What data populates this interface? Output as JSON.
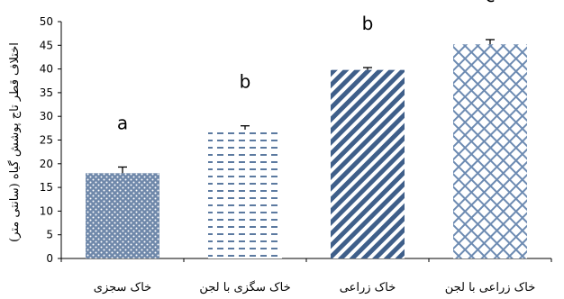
{
  "chart_data": {
    "type": "bar",
    "categories": [
      "خاک سجزی",
      "خاک سگزی با لجن",
      "خاک زراعی",
      "خاک زراعی با لجن"
    ],
    "values": [
      18,
      27.2,
      39.8,
      45.2
    ],
    "errors": [
      1.3,
      0.8,
      0.5,
      1.0
    ],
    "significance_letters": [
      "a",
      "b",
      "b",
      "c"
    ],
    "ylabel": "اختلاف قطر تاج پوشش گیاه (سانتی متر)",
    "ylim": [
      0,
      50
    ],
    "yticks": [
      0,
      5,
      10,
      15,
      20,
      25,
      30,
      35,
      40,
      45,
      50
    ],
    "grid": false,
    "colors": {
      "bar": "#4f6f97",
      "axis": "#000000"
    },
    "patterns": [
      "dots",
      "dashes",
      "diagonal-stripes",
      "crosshatch"
    ]
  }
}
